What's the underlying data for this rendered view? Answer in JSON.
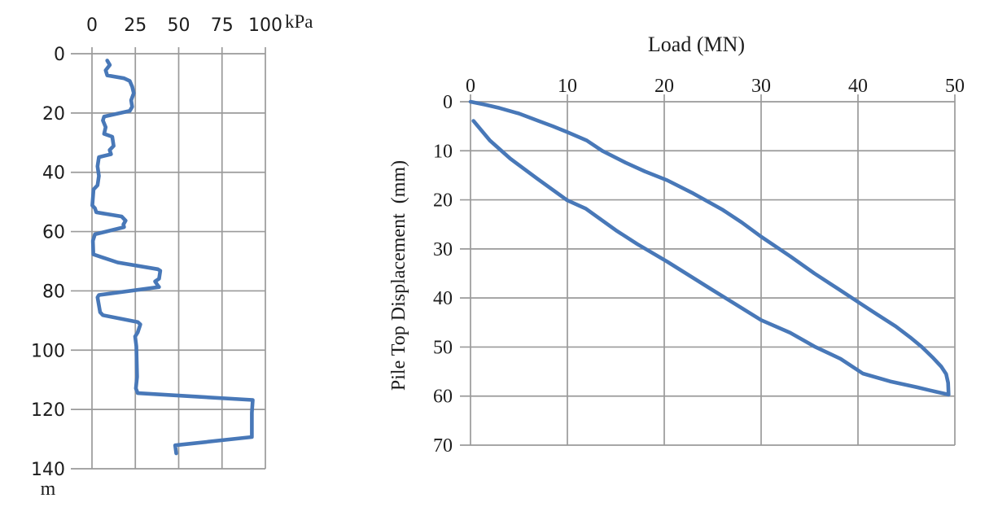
{
  "figure": {
    "background": "#ffffff",
    "accent_color": "#4878b8",
    "grid_color": "#9a9a9a",
    "text_color": "#1c1c1c"
  },
  "chart_data": [
    {
      "id": "soil-resistance-depth-profile",
      "type": "line",
      "title": "",
      "xlabel": "kPa",
      "ylabel": "m",
      "x_ticks": [
        0,
        25,
        50,
        75,
        100
      ],
      "y_ticks": [
        0,
        20,
        40,
        60,
        80,
        100,
        120,
        140
      ],
      "xlim": [
        0,
        100
      ],
      "ylim": [
        0,
        140
      ],
      "x_axis_position": "top",
      "y_direction": "down",
      "grid": true,
      "legend": "none",
      "series": [
        {
          "name": "resistance-profile-curve",
          "points": [
            [
              8.8,
              2.3
            ],
            [
              10.3,
              3.8
            ],
            [
              7.9,
              5.6
            ],
            [
              8.8,
              7.3
            ],
            [
              18.5,
              8.3
            ],
            [
              21.8,
              9.2
            ],
            [
              23.2,
              11.1
            ],
            [
              24.1,
              13.3
            ],
            [
              22.6,
              15.7
            ],
            [
              23.2,
              17.9
            ],
            [
              21.8,
              19.3
            ],
            [
              7.0,
              21.2
            ],
            [
              6.3,
              22.5
            ],
            [
              7.9,
              24.8
            ],
            [
              7.0,
              27.0
            ],
            [
              11.7,
              28.0
            ],
            [
              12.5,
              31.1
            ],
            [
              10.2,
              32.5
            ],
            [
              11.0,
              33.9
            ],
            [
              4.0,
              34.9
            ],
            [
              3.2,
              38.0
            ],
            [
              4.0,
              41.2
            ],
            [
              3.2,
              44.4
            ],
            [
              0.9,
              45.8
            ],
            [
              0.2,
              51.2
            ],
            [
              1.7,
              52.1
            ],
            [
              2.5,
              53.5
            ],
            [
              17.1,
              54.9
            ],
            [
              19.4,
              56.3
            ],
            [
              18.1,
              57.6
            ],
            [
              18.5,
              58.5
            ],
            [
              1.7,
              60.9
            ],
            [
              0.5,
              63.1
            ],
            [
              0.8,
              67.7
            ],
            [
              14.8,
              70.4
            ],
            [
              38.0,
              72.7
            ],
            [
              39.4,
              73.2
            ],
            [
              38.7,
              75.9
            ],
            [
              36.4,
              76.8
            ],
            [
              38.0,
              78.2
            ],
            [
              38.7,
              78.7
            ],
            [
              4.0,
              81.4
            ],
            [
              3.2,
              82.2
            ],
            [
              4.7,
              87.2
            ],
            [
              6.3,
              88.2
            ],
            [
              26.4,
              90.5
            ],
            [
              27.9,
              91.3
            ],
            [
              26.4,
              94.0
            ],
            [
              24.9,
              95.4
            ],
            [
              25.6,
              98.7
            ],
            [
              26.0,
              109.0
            ],
            [
              25.3,
              112.9
            ],
            [
              26.4,
              114.5
            ],
            [
              92.7,
              116.8
            ],
            [
              92.2,
              121.1
            ],
            [
              92.2,
              129.3
            ],
            [
              48.0,
              132.1
            ],
            [
              48.6,
              134.8
            ]
          ]
        }
      ]
    },
    {
      "id": "pile-load-displacement",
      "type": "line",
      "title": "Load (MN)",
      "xlabel": "",
      "ylabel": "Pile Top Displacement  (mm)",
      "x_ticks": [
        0,
        10,
        20,
        30,
        40,
        50
      ],
      "y_ticks": [
        0,
        10,
        20,
        30,
        40,
        50,
        60,
        70
      ],
      "xlim": [
        0,
        50
      ],
      "ylim": [
        0,
        70
      ],
      "x_axis_position": "top",
      "y_direction": "down",
      "grid": true,
      "legend": "none",
      "series": [
        {
          "name": "loading-curve",
          "points": [
            [
              0,
              0
            ],
            [
              1.5,
              0.6
            ],
            [
              3,
              1.3
            ],
            [
              5,
              2.4
            ],
            [
              7,
              3.9
            ],
            [
              8.5,
              5.0
            ],
            [
              10,
              6.2
            ],
            [
              12,
              7.9
            ],
            [
              13.6,
              10.0
            ],
            [
              16,
              12.4
            ],
            [
              18,
              14.2
            ],
            [
              20.3,
              16.0
            ],
            [
              23,
              18.7
            ],
            [
              26,
              22.0
            ],
            [
              28,
              24.6
            ],
            [
              30,
              27.5
            ],
            [
              33,
              31.5
            ],
            [
              35.5,
              35.0
            ],
            [
              38,
              38.2
            ],
            [
              40,
              40.8
            ],
            [
              42,
              43.4
            ],
            [
              43.9,
              45.8
            ],
            [
              45.5,
              48.2
            ],
            [
              46.6,
              50.0
            ],
            [
              47.7,
              52.1
            ],
            [
              48.6,
              54.0
            ],
            [
              49.1,
              55.5
            ],
            [
              49.3,
              57.3
            ],
            [
              49.35,
              59.7
            ]
          ]
        },
        {
          "name": "unloading-curve",
          "points": [
            [
              49.35,
              59.7
            ],
            [
              48,
              59.1
            ],
            [
              46.1,
              58.2
            ],
            [
              43.3,
              57.0
            ],
            [
              40.5,
              55.4
            ],
            [
              38.2,
              52.4
            ],
            [
              35.5,
              49.9
            ],
            [
              33,
              47.1
            ],
            [
              30,
              44.5
            ],
            [
              25,
              38.4
            ],
            [
              20.3,
              32.6
            ],
            [
              17.2,
              29.0
            ],
            [
              15,
              26.2
            ],
            [
              11.9,
              21.8
            ],
            [
              10,
              20.1
            ],
            [
              6.9,
              15.7
            ],
            [
              4.1,
              11.6
            ],
            [
              2,
              7.9
            ],
            [
              0.3,
              3.9
            ]
          ]
        }
      ]
    }
  ]
}
